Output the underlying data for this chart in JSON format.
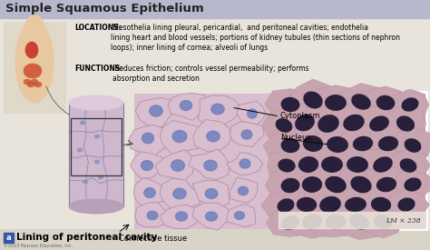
{
  "title": "Simple Squamous Epithelium",
  "title_fontsize": 9.5,
  "title_color": "#222222",
  "title_bg_color": "#b8b8cc",
  "bg_color": "#d8d8e0",
  "content_bg": "#e8e4dc",
  "locations_bold": "LOCATIONS:",
  "locations_text": " Mesothelia lining pleural, pericardial,  and peritoneal cavities; endothelia\nlining heart and blood vessels; portions of kidney tubules (thin sections of nephron\nloops); inner lining of cornea; alveoli of lungs",
  "functions_bold": "FUNCTIONS:",
  "functions_text": " Reduces friction; controls vessel permeability; performs\nabsorption and secretion",
  "annotation_cytoplasm": "Cytoplasm",
  "annotation_nucleus": "Nucleus",
  "annotation_connective": "Connective tissue",
  "label_a": "a",
  "label_caption": "Lining of peritoneal cavity",
  "lm_label": "LM × 238",
  "copyright": "©2013 Pearson Education, Inc.",
  "cell_bg_color": "#d8bece",
  "cell_nucleus_color": "#7080be",
  "cell_border_color": "#b090a8",
  "micro_bg_color": "#c8a4b0",
  "micro_nucleus_color": "#28203a",
  "annotation_font_size": 6.0,
  "body_font_size": 5.5,
  "caption_font_size": 7.5
}
